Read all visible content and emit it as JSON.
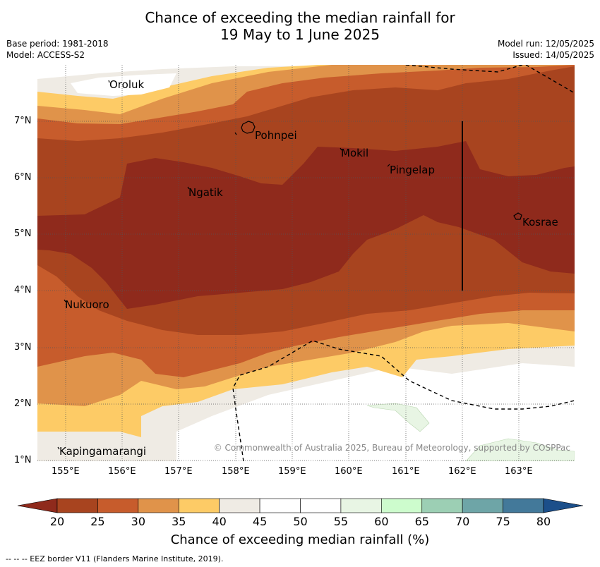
{
  "title_line1": "Chance of exceeding the median rainfall for",
  "title_line2": "19 May to 1 June 2025",
  "base_period": "Base period: 1981-2018",
  "model": "Model: ACCESS-S2",
  "model_run": "Model run: 12/05/2025",
  "issued": "Issued: 14/05/2025",
  "copyright": "© Commonwealth of Australia 2025, Bureau of Meteorology, supported by COSPPac",
  "colorbar": {
    "title": "Chance of exceeding median rainfall (%)",
    "ticks": [
      "20",
      "25",
      "30",
      "35",
      "40",
      "45",
      "50",
      "55",
      "60",
      "65",
      "70",
      "75",
      "80"
    ],
    "colors": [
      "#a8441f",
      "#c75c2c",
      "#e0934a",
      "#fdcb66",
      "#efebe4",
      "#ffffff",
      "#ffffff",
      "#e8f5e4",
      "#cdfccd",
      "#9ccfb4",
      "#6ea5a7",
      "#43799a"
    ],
    "under_color": "#8f2a1c",
    "over_color": "#1c4f8a"
  },
  "legend_footer": "--  --  -- EEZ border V11 (Flanders Marine Institute, 2019).",
  "axes": {
    "lon_labels": [
      "155°E",
      "156°E",
      "157°E",
      "158°E",
      "159°E",
      "160°E",
      "161°E",
      "162°E",
      "163°E"
    ],
    "lat_labels": [
      "7°N",
      "6°N",
      "5°N",
      "4°N",
      "3°N",
      "2°N",
      "1°N"
    ]
  },
  "places": [
    {
      "name": "Oroluk"
    },
    {
      "name": "Pohnpei"
    },
    {
      "name": "Mokil"
    },
    {
      "name": "Pingelap"
    },
    {
      "name": "Ngatik"
    },
    {
      "name": "Kosrae"
    },
    {
      "name": "Nukuoro"
    },
    {
      "name": "Kapingamarangi"
    }
  ]
}
